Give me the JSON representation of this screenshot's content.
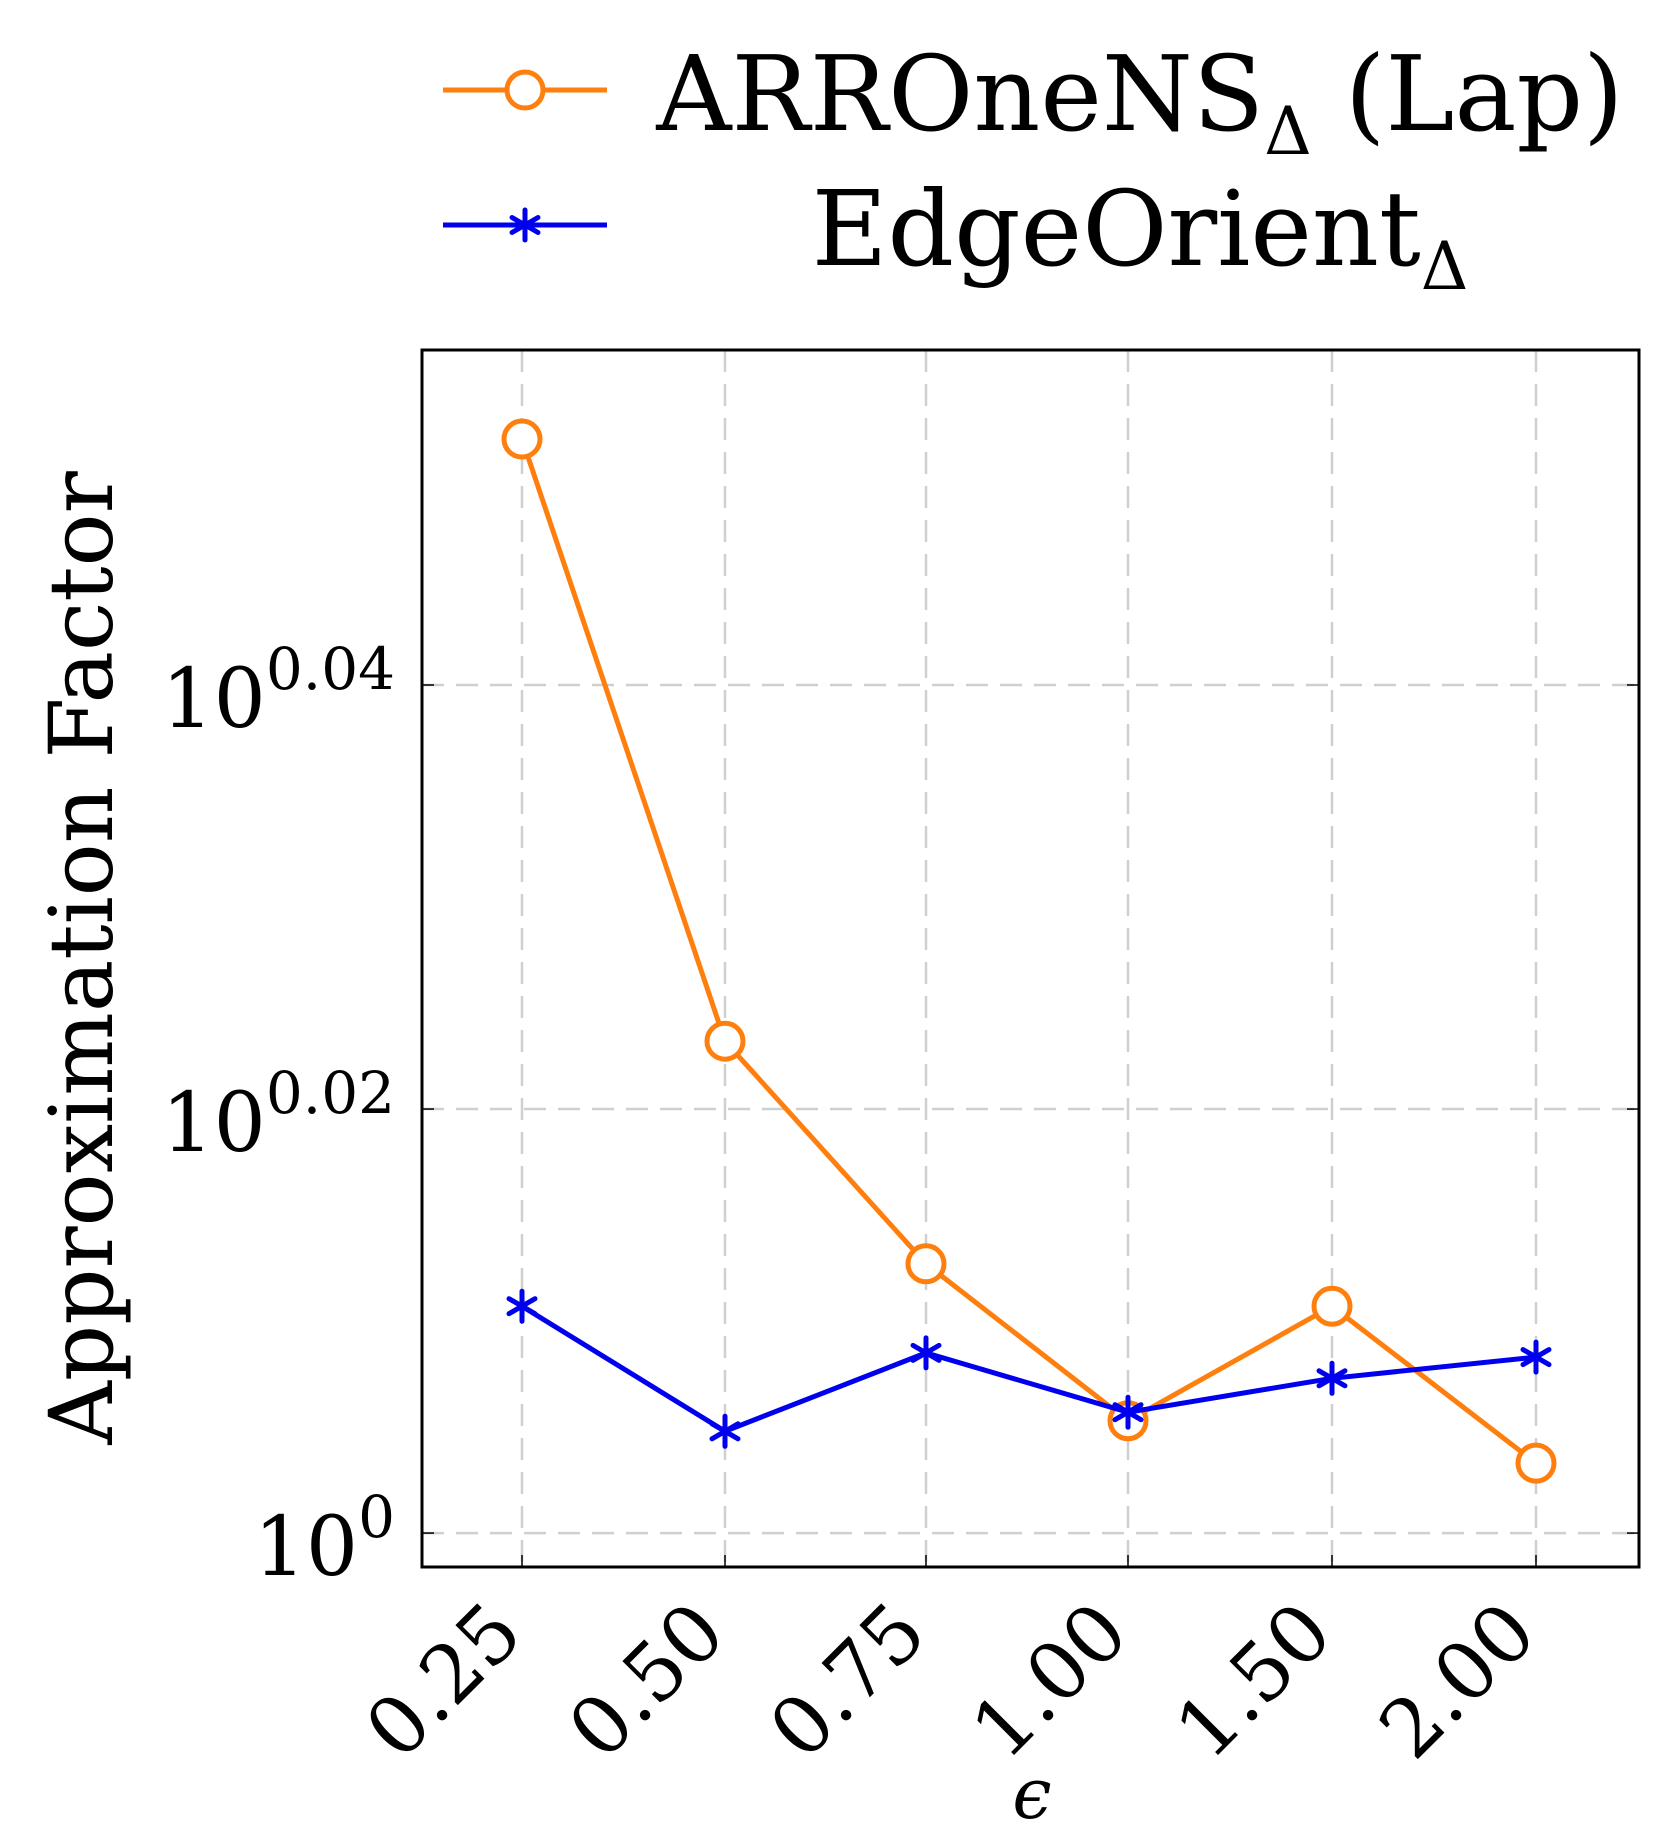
{
  "chart_data": {
    "type": "line",
    "xlabel": "ϵ",
    "ylabel": "Approximation Factor",
    "categories": [
      "0.25",
      "0.50",
      "0.75",
      "1.00",
      "1.50",
      "2.00"
    ],
    "y_scale": "log10",
    "y_ticks": [
      {
        "base": "10",
        "exp": "0",
        "value": 0
      },
      {
        "base": "10",
        "exp": "0.02",
        "value": 0.02
      },
      {
        "base": "10",
        "exp": "0.04",
        "value": 0.04
      }
    ],
    "ylim_log10": [
      -0.0016,
      0.0558
    ],
    "grid": true,
    "legend_position": "top",
    "series": [
      {
        "name": "ARROneNS",
        "subscript": "Δ",
        "suffix": " (Lap)",
        "color": "#ff7f0e",
        "marker": "circle",
        "log10_values": [
          0.0516,
          0.0232,
          0.0127,
          0.0053,
          0.0107,
          0.0033
        ]
      },
      {
        "name": "EdgeOrient",
        "subscript": "Δ",
        "suffix": "",
        "color": "#0000ee",
        "marker": "asterisk",
        "log10_values": [
          0.0107,
          0.0048,
          0.0085,
          0.0057,
          0.0073,
          0.0083
        ]
      }
    ]
  }
}
